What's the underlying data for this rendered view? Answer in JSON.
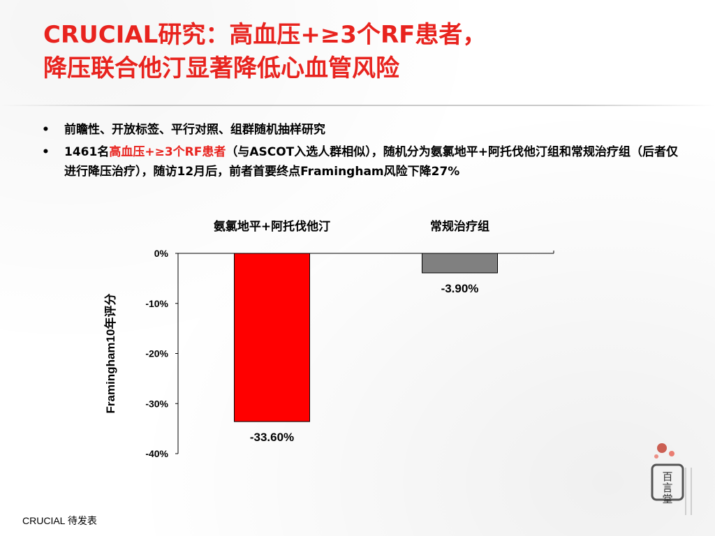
{
  "title_line1": "CRUCIAL研究：高血压+≥3个RF患者，",
  "title_line2": "降压联合他汀显著降低心血管风险",
  "bullets": {
    "b1": "前瞻性、开放标签、平行对照、组群随机抽样研究",
    "b2_prefix": "1461名",
    "b2_highlight": "高血压+≥3个RF患者",
    "b2_rest": "（与ASCOT入选人群相似），随机分为氨氯地平+阿托伐他汀组和常规治疗组（后者仅进行降压治疗），随访12月后，前者首要终点Framingham风险下降27%"
  },
  "chart_data": {
    "type": "bar",
    "categories": [
      "氨氯地平+阿托伐他汀",
      "常规治疗组"
    ],
    "values": [
      -33.6,
      -3.9
    ],
    "value_labels": [
      "-33.60%",
      "-3.90%"
    ],
    "colors": [
      "#ff0000",
      "#808080"
    ],
    "ylabel": "Framingham10年评分",
    "ylim": [
      -40,
      0
    ],
    "yticks": [
      0,
      -10,
      -20,
      -30,
      -40
    ],
    "ytick_labels": [
      "0%",
      "-10%",
      "-20%",
      "-30%",
      "-40%"
    ],
    "grid": false
  },
  "footer": "CRUCIAL 待发表",
  "logo": {
    "text": "百言堂",
    "icon": "seal-logo-icon"
  },
  "colors": {
    "accent": "#e8231e"
  }
}
